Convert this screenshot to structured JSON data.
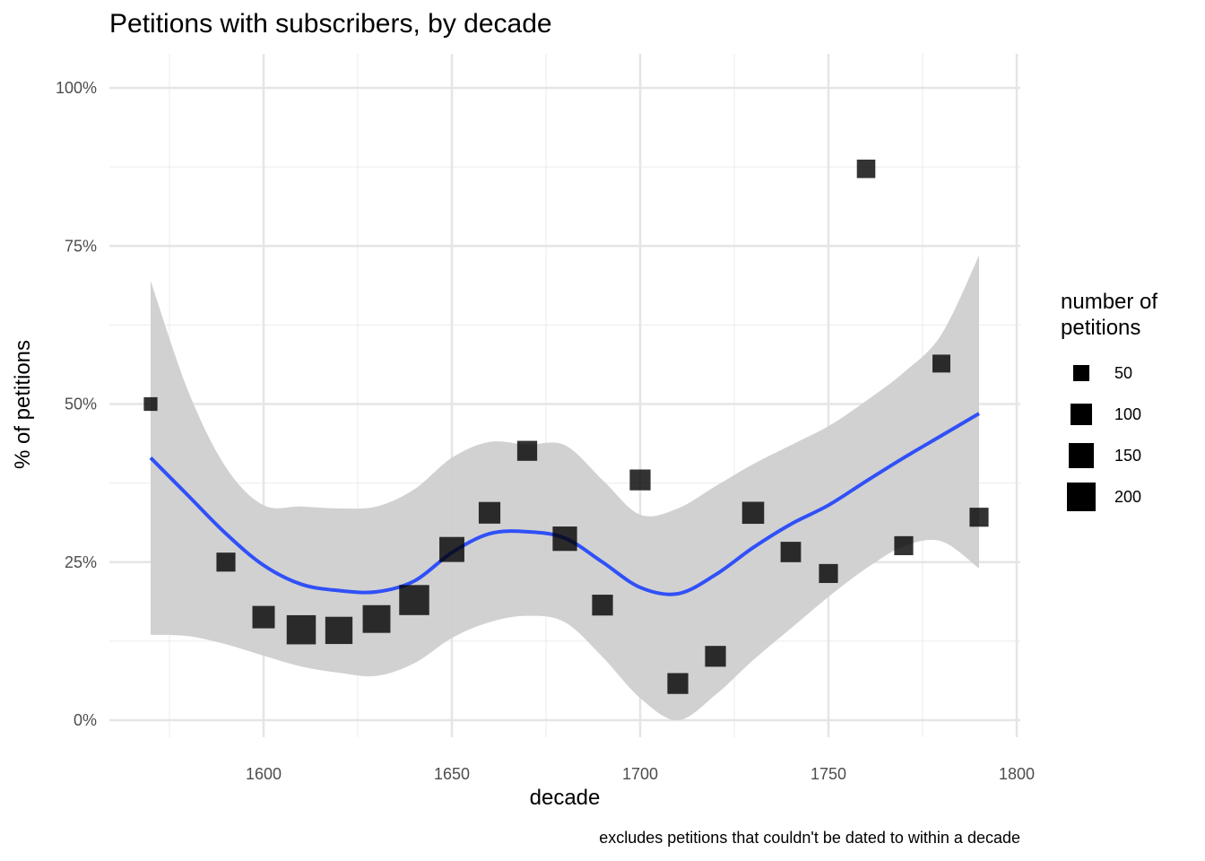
{
  "title": "Petitions with subscribers, by decade",
  "x_axis": {
    "title": "decade",
    "ticks": [
      "1600",
      "1650",
      "1700",
      "1750",
      "1800"
    ]
  },
  "y_axis": {
    "title": "% of petitions",
    "ticks": [
      "0%",
      "25%",
      "50%",
      "75%",
      "100%"
    ]
  },
  "caption": "excludes petitions that couldn't be dated to within a decade",
  "legend": {
    "title_line1": "number of",
    "title_line2": "petitions",
    "items": [
      {
        "label": "50",
        "size": 18
      },
      {
        "label": "100",
        "size": 24
      },
      {
        "label": "150",
        "size": 28
      },
      {
        "label": "200",
        "size": 32
      }
    ]
  },
  "colors": {
    "smooth_line": "#3050f8",
    "ribbon": "#cfcfcf",
    "points": "#333333",
    "grid": "#ebebeb"
  },
  "chart_data": {
    "type": "scatter",
    "title": "Petitions with subscribers, by decade",
    "xlabel": "decade",
    "ylabel": "% of petitions",
    "xlim": [
      1565,
      1800
    ],
    "ylim": [
      0,
      100
    ],
    "grid": true,
    "legend_position": "right",
    "size_legend": {
      "title": "number of petitions",
      "breaks": [
        50,
        100,
        150,
        200
      ]
    },
    "points": [
      {
        "x": 1570,
        "y": 50.0,
        "n": 5
      },
      {
        "x": 1590,
        "y": 25.0,
        "n": 40
      },
      {
        "x": 1600,
        "y": 16.3,
        "n": 80
      },
      {
        "x": 1610,
        "y": 14.3,
        "n": 200
      },
      {
        "x": 1620,
        "y": 14.2,
        "n": 160
      },
      {
        "x": 1630,
        "y": 16.0,
        "n": 170
      },
      {
        "x": 1640,
        "y": 19.0,
        "n": 220
      },
      {
        "x": 1650,
        "y": 27.0,
        "n": 120
      },
      {
        "x": 1660,
        "y": 32.8,
        "n": 70
      },
      {
        "x": 1670,
        "y": 42.6,
        "n": 50
      },
      {
        "x": 1680,
        "y": 28.7,
        "n": 110
      },
      {
        "x": 1690,
        "y": 18.2,
        "n": 60
      },
      {
        "x": 1700,
        "y": 38.0,
        "n": 60
      },
      {
        "x": 1710,
        "y": 5.8,
        "n": 60
      },
      {
        "x": 1720,
        "y": 10.1,
        "n": 60
      },
      {
        "x": 1730,
        "y": 32.8,
        "n": 75
      },
      {
        "x": 1740,
        "y": 26.6,
        "n": 55
      },
      {
        "x": 1750,
        "y": 23.2,
        "n": 40
      },
      {
        "x": 1760,
        "y": 87.2,
        "n": 35
      },
      {
        "x": 1770,
        "y": 27.6,
        "n": 40
      },
      {
        "x": 1780,
        "y": 56.4,
        "n": 30
      },
      {
        "x": 1790,
        "y": 32.1,
        "n": 40
      }
    ],
    "smooth": {
      "x": [
        1570,
        1580,
        1590,
        1600,
        1610,
        1620,
        1630,
        1640,
        1650,
        1660,
        1670,
        1680,
        1690,
        1700,
        1710,
        1720,
        1730,
        1740,
        1750,
        1760,
        1770,
        1780,
        1790
      ],
      "y": [
        41.5,
        35.5,
        29.5,
        24.5,
        21.5,
        20.5,
        20.3,
        22.0,
        26.5,
        29.5,
        29.8,
        28.8,
        25.0,
        21.0,
        20.0,
        23.0,
        27.3,
        31.0,
        34.0,
        37.8,
        41.5,
        45.0,
        48.5
      ],
      "lower": [
        13.5,
        13.3,
        12.0,
        10.2,
        8.5,
        7.5,
        7.0,
        9.0,
        13.0,
        15.5,
        16.5,
        15.5,
        10.0,
        3.5,
        0.0,
        4.0,
        9.5,
        14.5,
        19.5,
        24.0,
        27.5,
        28.3,
        24.0
      ],
      "upper": [
        69.5,
        52.0,
        40.0,
        34.0,
        33.8,
        33.5,
        33.8,
        36.5,
        41.5,
        44.0,
        43.6,
        43.5,
        38.0,
        32.5,
        33.5,
        37.0,
        40.5,
        43.5,
        46.5,
        50.5,
        55.0,
        61.0,
        73.5
      ]
    }
  }
}
